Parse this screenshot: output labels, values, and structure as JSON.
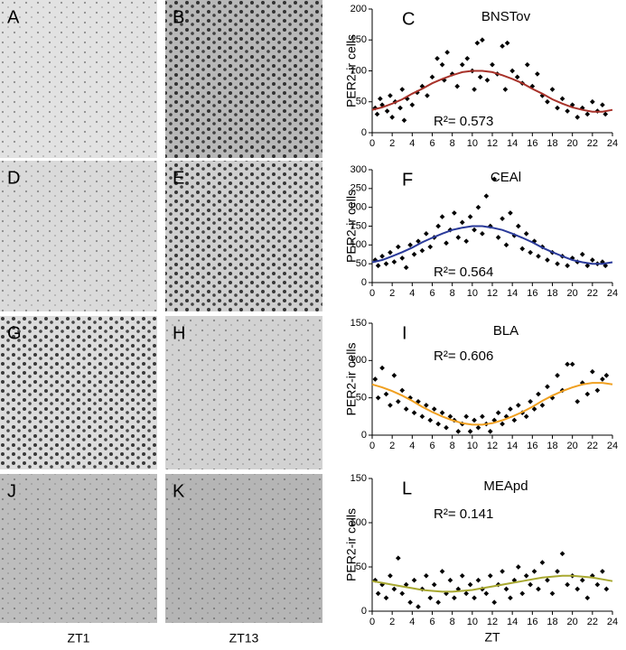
{
  "micrographs": {
    "panels": [
      {
        "label": "A"
      },
      {
        "label": "B"
      },
      {
        "label": "D"
      },
      {
        "label": "E"
      },
      {
        "label": "G"
      },
      {
        "label": "H"
      },
      {
        "label": "J"
      },
      {
        "label": "K"
      }
    ],
    "column_labels": [
      "ZT1",
      "ZT13"
    ]
  },
  "chart_data": [
    {
      "type": "scatter",
      "label": "C",
      "title": "BNSTov",
      "y_label": "PER2-ir cells",
      "annotation": "R²= 0.573",
      "color": "#000000",
      "x": [
        0.3,
        0.5,
        0.8,
        1,
        1.5,
        1.8,
        2,
        2.3,
        2.8,
        3,
        3.2,
        3.5,
        4,
        4.5,
        5,
        5.5,
        6,
        6.5,
        7,
        7.2,
        7.5,
        8,
        8.5,
        9,
        9.5,
        10,
        10.2,
        10.5,
        10.8,
        11,
        11.5,
        12,
        12.5,
        13,
        13.3,
        13.5,
        14,
        14.5,
        15,
        15.5,
        16,
        16.5,
        17,
        17.5,
        18,
        18.5,
        19,
        19.5,
        20,
        20.5,
        21,
        21.5,
        22,
        22.5,
        23,
        23.3
      ],
      "values": [
        40,
        30,
        55,
        45,
        35,
        60,
        25,
        50,
        40,
        70,
        20,
        55,
        45,
        65,
        75,
        60,
        90,
        120,
        110,
        85,
        130,
        95,
        75,
        110,
        120,
        100,
        70,
        145,
        90,
        150,
        85,
        110,
        95,
        140,
        70,
        145,
        100,
        90,
        80,
        110,
        75,
        95,
        60,
        50,
        70,
        40,
        55,
        35,
        45,
        25,
        40,
        30,
        50,
        35,
        45,
        30
      ],
      "fit": {
        "color": "#a8322a",
        "x": [
          0,
          1,
          2,
          3,
          4,
          5,
          6,
          7,
          8,
          9,
          10,
          11,
          12,
          13,
          14,
          15,
          16,
          17,
          18,
          19,
          20,
          21,
          22,
          23,
          24
        ],
        "values": [
          37,
          41,
          47,
          54,
          63,
          71,
          80,
          87,
          93,
          98,
          100,
          100,
          98,
          93,
          87,
          80,
          71,
          63,
          54,
          47,
          41,
          37,
          34,
          34,
          37
        ]
      },
      "xlim": [
        0,
        24
      ],
      "xticks": [
        0,
        2,
        4,
        6,
        8,
        10,
        12,
        14,
        16,
        18,
        20,
        22,
        24
      ],
      "ylim": [
        0,
        200
      ],
      "yticks": [
        0,
        50,
        100,
        150,
        200
      ]
    },
    {
      "type": "scatter",
      "label": "F",
      "title": "CEAl",
      "y_label": "PER2-ir cells",
      "annotation": "R²= 0.564",
      "color": "#000000",
      "x": [
        0.3,
        0.6,
        1,
        1.4,
        1.8,
        2.2,
        2.6,
        3,
        3.4,
        3.8,
        4.2,
        4.6,
        5,
        5.4,
        5.8,
        6.2,
        6.6,
        7,
        7.4,
        7.8,
        8.2,
        8.6,
        9,
        9.4,
        9.8,
        10.2,
        10.6,
        11,
        11.4,
        11.8,
        12.2,
        12.6,
        13,
        13.4,
        13.8,
        14.2,
        14.6,
        15,
        15.4,
        15.8,
        16.2,
        16.6,
        17,
        17.5,
        18,
        18.5,
        19,
        19.5,
        20,
        20.5,
        21,
        21.5,
        22,
        22.5,
        23,
        23.3
      ],
      "values": [
        60,
        45,
        70,
        50,
        80,
        55,
        95,
        65,
        40,
        100,
        75,
        110,
        85,
        130,
        95,
        120,
        150,
        175,
        105,
        140,
        185,
        120,
        160,
        110,
        175,
        140,
        200,
        130,
        230,
        150,
        275,
        120,
        170,
        100,
        185,
        125,
        150,
        90,
        130,
        80,
        110,
        70,
        95,
        60,
        80,
        50,
        70,
        45,
        65,
        55,
        75,
        45,
        60,
        50,
        55,
        45
      ],
      "fit": {
        "color": "#2a3a9a",
        "x": [
          0,
          1,
          2,
          3,
          4,
          5,
          6,
          7,
          8,
          9,
          10,
          11,
          12,
          13,
          14,
          15,
          16,
          17,
          18,
          19,
          20,
          21,
          22,
          23,
          24
        ],
        "values": [
          54,
          60,
          70,
          81,
          93,
          107,
          119,
          130,
          140,
          146,
          150,
          150,
          146,
          140,
          130,
          119,
          107,
          93,
          81,
          70,
          60,
          54,
          50,
          50,
          54
        ]
      },
      "xlim": [
        0,
        24
      ],
      "xticks": [
        0,
        2,
        4,
        6,
        8,
        10,
        12,
        14,
        16,
        18,
        20,
        22,
        24
      ],
      "ylim": [
        0,
        300
      ],
      "yticks": [
        0,
        50,
        100,
        150,
        200,
        250,
        300
      ]
    },
    {
      "type": "scatter",
      "label": "I",
      "title": "BLA",
      "y_label": "PER2-ir cells",
      "annotation": "R²= 0.606",
      "color": "#000000",
      "x": [
        0.3,
        0.6,
        1,
        1.4,
        1.8,
        2.2,
        2.6,
        3,
        3.4,
        3.8,
        4.2,
        4.6,
        5,
        5.4,
        5.8,
        6.2,
        6.6,
        7,
        7.4,
        7.8,
        8.2,
        8.6,
        9,
        9.4,
        9.8,
        10.2,
        10.6,
        11,
        11.4,
        11.8,
        12.2,
        12.6,
        13,
        13.4,
        13.8,
        14.2,
        14.6,
        15,
        15.4,
        15.8,
        16.2,
        16.6,
        17,
        17.5,
        18,
        18.5,
        19,
        19.5,
        20,
        20.5,
        21,
        21.5,
        22,
        22.5,
        23,
        23.4
      ],
      "values": [
        75,
        50,
        90,
        55,
        40,
        80,
        45,
        60,
        35,
        50,
        30,
        45,
        25,
        40,
        20,
        35,
        15,
        30,
        10,
        25,
        20,
        5,
        15,
        25,
        5,
        20,
        10,
        25,
        15,
        5,
        20,
        30,
        15,
        25,
        35,
        20,
        40,
        30,
        25,
        45,
        35,
        55,
        40,
        65,
        50,
        80,
        60,
        95,
        95,
        45,
        70,
        55,
        85,
        60,
        75,
        80
      ],
      "fit": {
        "color": "#f0a020",
        "x": [
          0,
          1,
          2,
          3,
          4,
          5,
          6,
          7,
          8,
          9,
          10,
          11,
          12,
          13,
          14,
          15,
          16,
          17,
          18,
          19,
          20,
          21,
          22,
          23,
          24
        ],
        "values": [
          68,
          64,
          59,
          53,
          46,
          38,
          31,
          25,
          20,
          16,
          14,
          14,
          16,
          20,
          25,
          31,
          38,
          46,
          53,
          59,
          64,
          68,
          70,
          70,
          68
        ]
      },
      "xlim": [
        0,
        24
      ],
      "xticks": [
        0,
        2,
        4,
        6,
        8,
        10,
        12,
        14,
        16,
        18,
        20,
        22,
        24
      ],
      "ylim": [
        0,
        150
      ],
      "yticks": [
        0,
        50,
        100,
        150
      ]
    },
    {
      "type": "scatter",
      "label": "L",
      "title": "MEApd",
      "y_label": "PER2-ir cells",
      "x_label": "ZT",
      "annotation": "R²= 0.141",
      "color": "#000000",
      "x": [
        0.3,
        0.6,
        1,
        1.4,
        1.8,
        2.2,
        2.6,
        3,
        3.4,
        3.8,
        4.2,
        4.6,
        5,
        5.4,
        5.8,
        6.2,
        6.6,
        7,
        7.4,
        7.8,
        8.2,
        8.6,
        9,
        9.4,
        9.8,
        10.2,
        10.6,
        11,
        11.4,
        11.8,
        12.2,
        12.6,
        13,
        13.4,
        13.8,
        14.2,
        14.6,
        15,
        15.4,
        15.8,
        16.2,
        16.6,
        17,
        17.5,
        18,
        18.5,
        19,
        19.5,
        20,
        20.5,
        21,
        21.5,
        22,
        22.5,
        23,
        23.4
      ],
      "values": [
        35,
        20,
        30,
        15,
        40,
        25,
        60,
        20,
        30,
        10,
        35,
        5,
        25,
        40,
        15,
        30,
        10,
        45,
        20,
        35,
        15,
        25,
        40,
        20,
        30,
        15,
        35,
        25,
        20,
        40,
        10,
        30,
        45,
        25,
        15,
        35,
        50,
        20,
        40,
        30,
        45,
        25,
        55,
        35,
        20,
        45,
        65,
        30,
        40,
        25,
        35,
        15,
        40,
        30,
        45,
        25
      ],
      "fit": {
        "color": "#a8a830",
        "x": [
          0,
          1,
          2,
          3,
          4,
          5,
          6,
          7,
          8,
          9,
          10,
          11,
          12,
          13,
          14,
          15,
          16,
          17,
          18,
          19,
          20,
          21,
          22,
          23,
          24
        ],
        "values": [
          34,
          32,
          30,
          28,
          26,
          24,
          23,
          22,
          22,
          23,
          24,
          26,
          28,
          30,
          32,
          34,
          36,
          38,
          39,
          40,
          40,
          39,
          38,
          36,
          34
        ]
      },
      "xlim": [
        0,
        24
      ],
      "xticks": [
        0,
        2,
        4,
        6,
        8,
        10,
        12,
        14,
        16,
        18,
        20,
        22,
        24
      ],
      "ylim": [
        0,
        150
      ],
      "yticks": [
        0,
        50,
        100,
        150
      ]
    }
  ]
}
